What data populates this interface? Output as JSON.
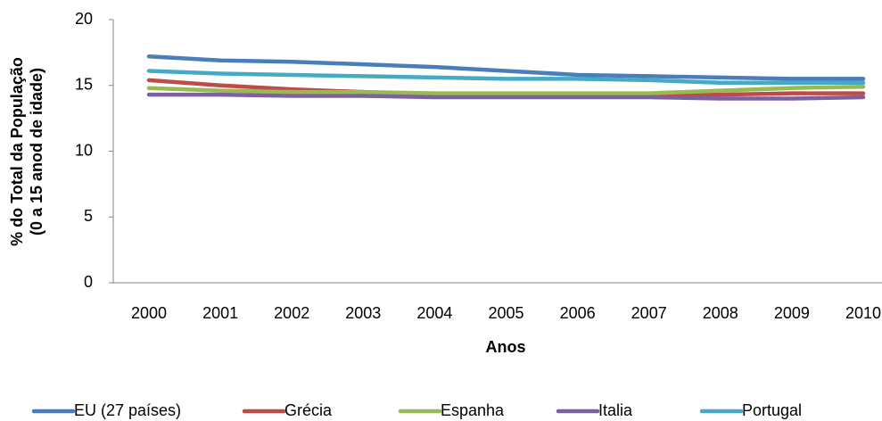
{
  "chart_data": {
    "type": "line",
    "y_label": [
      "% do Total da População",
      "(0 a 15 anod de idade)"
    ],
    "x_label": "Anos",
    "categories": [
      "2000",
      "2001",
      "2002",
      "2003",
      "2004",
      "2005",
      "2006",
      "2007",
      "2008",
      "2009",
      "2010"
    ],
    "series": [
      {
        "name": "EU (27 países)",
        "color": "#4a7ebb",
        "values": [
          17.2,
          16.9,
          16.8,
          16.6,
          16.4,
          16.1,
          15.8,
          15.7,
          15.6,
          15.5,
          15.5
        ]
      },
      {
        "name": "Grécia",
        "color": "#be4b48",
        "values": [
          15.4,
          15.0,
          14.7,
          14.5,
          14.3,
          14.3,
          14.3,
          14.3,
          14.3,
          14.4,
          14.4
        ]
      },
      {
        "name": "Espanha",
        "color": "#98b954",
        "values": [
          14.8,
          14.6,
          14.5,
          14.5,
          14.4,
          14.4,
          14.4,
          14.4,
          14.6,
          14.8,
          14.9
        ]
      },
      {
        "name": "Italia",
        "color": "#7d60a0",
        "values": [
          14.3,
          14.3,
          14.2,
          14.2,
          14.1,
          14.1,
          14.1,
          14.1,
          14.0,
          14.0,
          14.1
        ]
      },
      {
        "name": "Portugal",
        "color": "#46aac5",
        "values": [
          16.1,
          15.9,
          15.8,
          15.7,
          15.6,
          15.5,
          15.5,
          15.4,
          15.2,
          15.2,
          15.2
        ]
      }
    ],
    "ylim": [
      0,
      20
    ],
    "yticks": [
      0,
      5,
      10,
      15,
      20
    ],
    "grid": false,
    "legend": "bottom"
  }
}
